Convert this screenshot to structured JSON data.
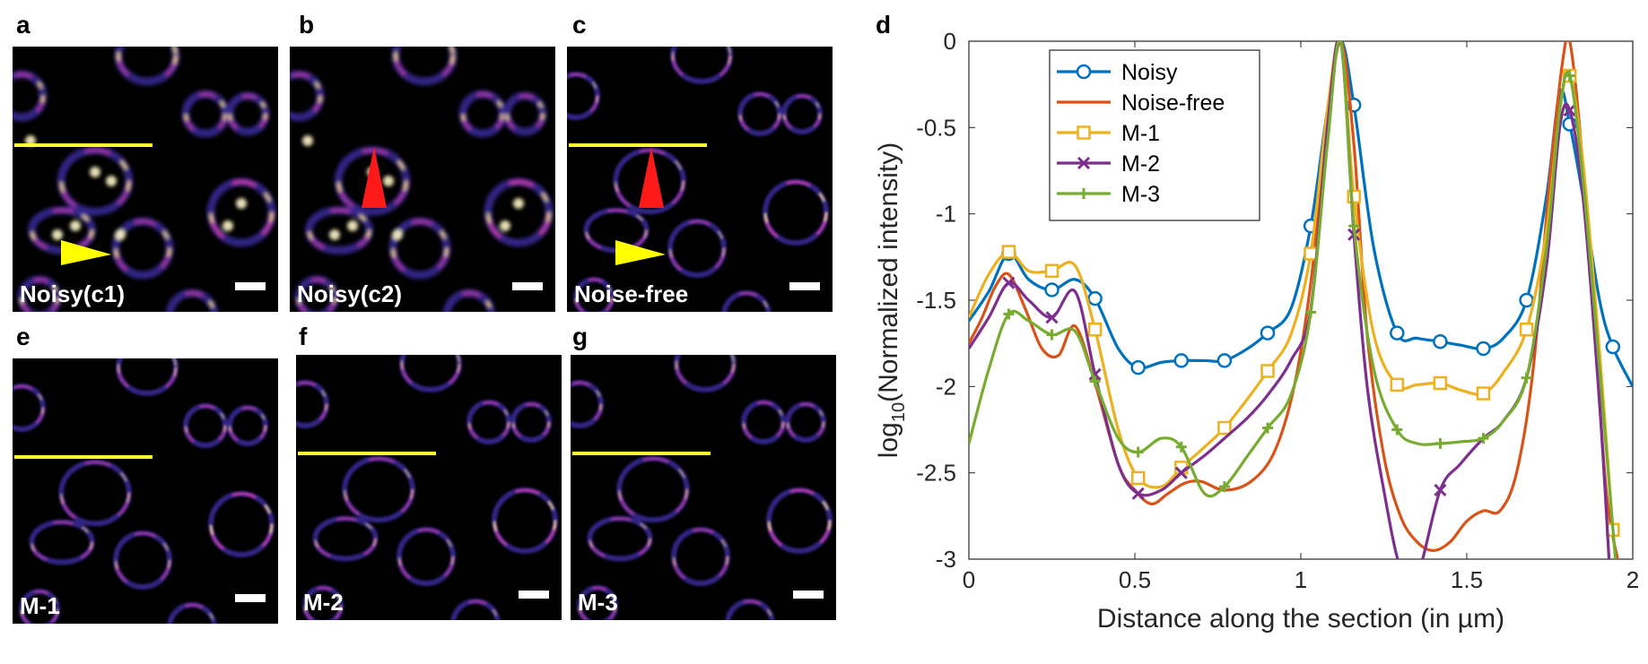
{
  "panels": [
    {
      "letter": "a",
      "label": "Noisy(c1)",
      "line": true,
      "arrow": "yellow",
      "noisy": true
    },
    {
      "letter": "b",
      "label": "Noisy(c2)",
      "line": false,
      "arrow": "red",
      "noisy": true
    },
    {
      "letter": "c",
      "label": "Noise-free",
      "line": true,
      "arrow": "both",
      "noisy": false
    },
    {
      "letter": "e",
      "label": "M-1",
      "line": true,
      "arrow": "none",
      "noisy": false
    },
    {
      "letter": "f",
      "label": "M-2",
      "line": true,
      "arrow": "none",
      "noisy": false
    },
    {
      "letter": "g",
      "label": "M-3",
      "line": true,
      "arrow": "none",
      "noisy": false
    }
  ],
  "chart_data": {
    "letter": "d",
    "type": "line",
    "xlabel": "Distance along the section (in  µm)",
    "ylabel_prefix": "log",
    "ylabel_sub": "10",
    "ylabel_suffix": "(Normalized intensity)",
    "xlim": [
      0,
      2
    ],
    "ylim": [
      -3,
      0
    ],
    "xticks": [
      "0",
      "0.5",
      "1",
      "1.5",
      "2"
    ],
    "yticks": [
      "0",
      "-0.5",
      "-1",
      "-1.5",
      "-2",
      "-2.5",
      "-3"
    ],
    "legend_position": "top-left",
    "series": [
      {
        "name": "Noisy",
        "color": "#0072BD",
        "marker": "circle",
        "x": [
          0,
          0.06,
          0.12,
          0.18,
          0.25,
          0.32,
          0.38,
          0.45,
          0.51,
          0.58,
          0.64,
          0.71,
          0.77,
          0.84,
          0.9,
          0.97,
          1.03,
          1.08,
          1.12,
          1.16,
          1.22,
          1.29,
          1.35,
          1.42,
          1.48,
          1.55,
          1.61,
          1.68,
          1.74,
          1.78,
          1.81,
          1.85,
          1.9,
          1.94,
          2.0
        ],
        "y": [
          -1.62,
          -1.45,
          -1.23,
          -1.38,
          -1.44,
          -1.38,
          -1.49,
          -1.78,
          -1.89,
          -1.86,
          -1.85,
          -1.85,
          -1.85,
          -1.78,
          -1.69,
          -1.55,
          -1.07,
          -0.4,
          0,
          -0.37,
          -1.2,
          -1.69,
          -1.72,
          -1.74,
          -1.76,
          -1.78,
          -1.72,
          -1.5,
          -0.9,
          -0.3,
          -0.48,
          -0.9,
          -1.5,
          -1.77,
          -2.0
        ],
        "markers": [
          0.12,
          0.25,
          0.38,
          0.51,
          0.64,
          0.77,
          0.9,
          1.03,
          1.16,
          1.29,
          1.42,
          1.55,
          1.68,
          1.81,
          1.94
        ]
      },
      {
        "name": "Noise-free",
        "color": "#D95319",
        "marker": "none",
        "x": [
          0,
          0.04,
          0.08,
          0.12,
          0.17,
          0.22,
          0.27,
          0.32,
          0.38,
          0.45,
          0.5,
          0.55,
          0.6,
          0.65,
          0.7,
          0.77,
          0.85,
          0.92,
          0.98,
          1.03,
          1.08,
          1.12,
          1.16,
          1.2,
          1.25,
          1.3,
          1.35,
          1.4,
          1.45,
          1.5,
          1.55,
          1.6,
          1.65,
          1.7,
          1.75,
          1.79,
          1.81,
          1.84,
          1.88,
          1.92,
          1.96
        ],
        "y": [
          -1.75,
          -1.6,
          -1.42,
          -1.35,
          -1.55,
          -1.78,
          -1.82,
          -1.65,
          -1.98,
          -2.45,
          -2.6,
          -2.68,
          -2.62,
          -2.56,
          -2.55,
          -2.6,
          -2.55,
          -2.38,
          -2.0,
          -1.4,
          -0.5,
          0,
          -0.6,
          -1.7,
          -2.4,
          -2.75,
          -2.9,
          -2.95,
          -2.9,
          -2.78,
          -2.72,
          -2.72,
          -2.5,
          -1.9,
          -0.8,
          -0.1,
          0,
          -0.5,
          -1.5,
          -2.6,
          -3.05
        ]
      },
      {
        "name": "M-1",
        "color": "#EDB120",
        "marker": "square",
        "x": [
          0,
          0.06,
          0.12,
          0.18,
          0.25,
          0.32,
          0.38,
          0.45,
          0.51,
          0.58,
          0.64,
          0.71,
          0.77,
          0.84,
          0.9,
          0.97,
          1.03,
          1.08,
          1.12,
          1.16,
          1.22,
          1.29,
          1.35,
          1.42,
          1.48,
          1.55,
          1.61,
          1.68,
          1.74,
          1.78,
          1.81,
          1.85,
          1.9,
          1.94
        ],
        "y": [
          -1.6,
          -1.35,
          -1.22,
          -1.33,
          -1.33,
          -1.3,
          -1.67,
          -2.25,
          -2.53,
          -2.58,
          -2.47,
          -2.35,
          -2.24,
          -2.07,
          -1.91,
          -1.7,
          -1.23,
          -0.4,
          0,
          -0.9,
          -1.7,
          -1.99,
          -1.99,
          -1.98,
          -2.02,
          -2.04,
          -1.92,
          -1.67,
          -1.1,
          -0.4,
          -0.2,
          -0.7,
          -1.8,
          -2.83
        ],
        "markers": [
          0.12,
          0.25,
          0.38,
          0.51,
          0.64,
          0.77,
          0.9,
          1.03,
          1.16,
          1.29,
          1.42,
          1.55,
          1.68,
          1.81,
          1.94
        ]
      },
      {
        "name": "M-2",
        "color": "#7E2F8E",
        "marker": "x",
        "x": [
          0,
          0.06,
          0.12,
          0.18,
          0.25,
          0.32,
          0.38,
          0.45,
          0.51,
          0.58,
          0.64,
          0.71,
          0.77,
          0.84,
          0.9,
          0.97,
          1.03,
          1.08,
          1.12,
          1.16,
          1.2,
          1.25,
          1.3,
          1.35,
          1.42,
          1.48,
          1.55,
          1.61,
          1.68,
          1.74,
          1.78,
          1.81,
          1.85,
          1.9,
          1.93
        ],
        "y": [
          -1.78,
          -1.6,
          -1.4,
          -1.5,
          -1.6,
          -1.45,
          -1.93,
          -2.45,
          -2.62,
          -2.6,
          -2.5,
          -2.4,
          -2.3,
          -2.18,
          -2.05,
          -1.85,
          -1.55,
          -0.5,
          0,
          -1.12,
          -2.0,
          -2.6,
          -3.05,
          -3.1,
          -2.6,
          -2.45,
          -2.3,
          -2.2,
          -1.95,
          -1.3,
          -0.5,
          -0.4,
          -0.9,
          -2.1,
          -3.05
        ],
        "markers": [
          0.12,
          0.25,
          0.38,
          0.51,
          0.64,
          1.16,
          1.42,
          1.81
        ]
      },
      {
        "name": "M-3",
        "color": "#77AC30",
        "marker": "plus",
        "x": [
          0,
          0.06,
          0.12,
          0.18,
          0.25,
          0.32,
          0.38,
          0.45,
          0.51,
          0.58,
          0.64,
          0.71,
          0.77,
          0.84,
          0.9,
          0.97,
          1.03,
          1.08,
          1.12,
          1.16,
          1.22,
          1.29,
          1.35,
          1.42,
          1.48,
          1.55,
          1.61,
          1.68,
          1.74,
          1.78,
          1.81,
          1.85,
          1.9,
          1.95
        ],
        "y": [
          -2.33,
          -1.9,
          -1.58,
          -1.62,
          -1.7,
          -1.68,
          -1.97,
          -2.3,
          -2.38,
          -2.3,
          -2.35,
          -2.62,
          -2.58,
          -2.4,
          -2.24,
          -2.05,
          -1.57,
          -0.6,
          0,
          -1.07,
          -1.9,
          -2.25,
          -2.33,
          -2.33,
          -2.32,
          -2.3,
          -2.2,
          -1.95,
          -1.2,
          -0.4,
          -0.2,
          -0.8,
          -1.9,
          -3.05
        ],
        "markers": [
          0.12,
          0.25,
          0.38,
          0.51,
          0.64,
          0.77,
          0.9,
          1.03,
          1.16,
          1.29,
          1.42,
          1.55,
          1.68,
          1.81
        ]
      }
    ]
  }
}
